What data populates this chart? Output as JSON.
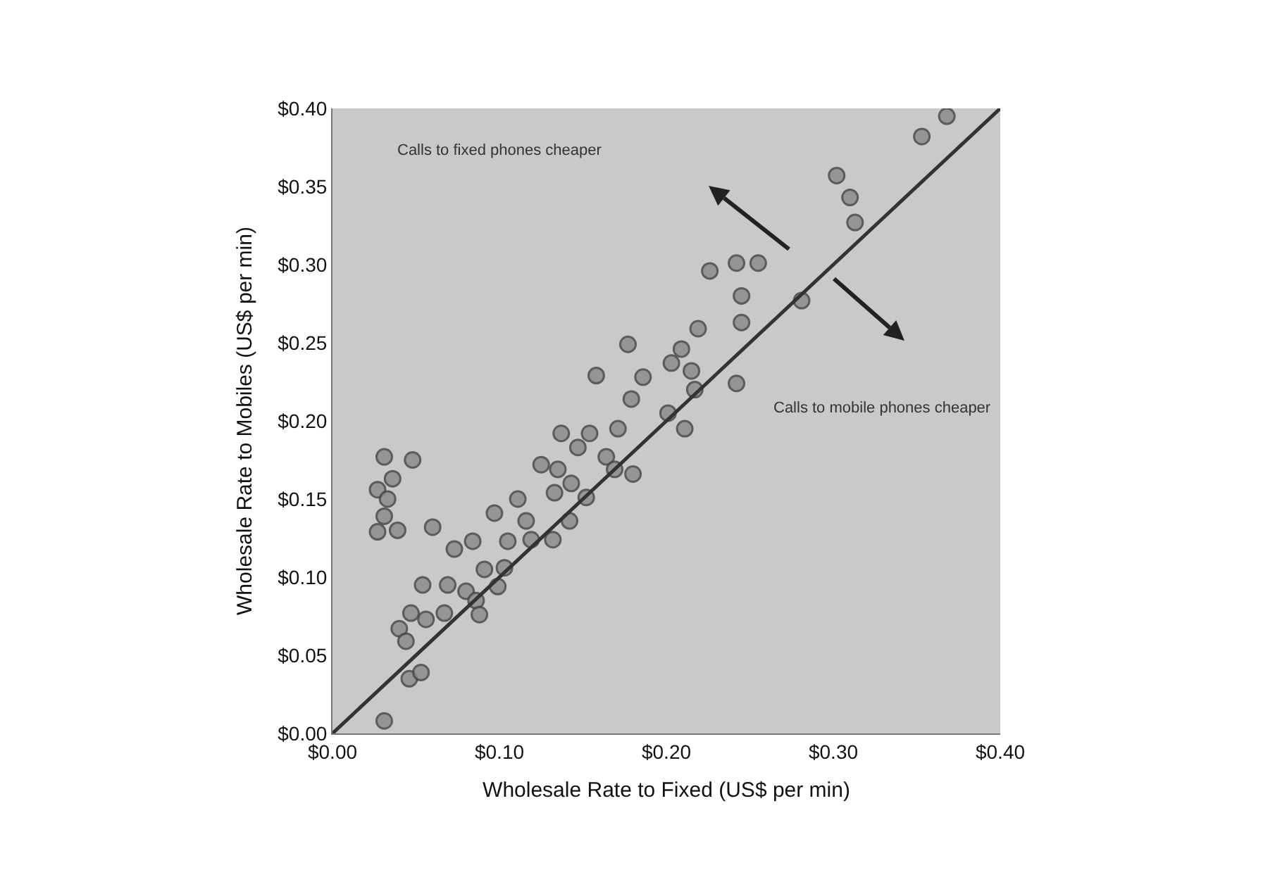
{
  "chart_data": {
    "type": "scatter",
    "xlabel": "Wholesale Rate to Fixed (US$ per min)",
    "ylabel": "Wholesale Rate to Mobiles (US$ per min)",
    "annotations": [
      "Calls to fixed phones cheaper",
      "Calls to mobile phones cheaper"
    ],
    "xlim": [
      0,
      0.4
    ],
    "ylim": [
      0,
      0.4
    ],
    "xticks": [
      {
        "value": 0,
        "label": "$0.00"
      },
      {
        "value": 0.1,
        "label": "$0.10"
      },
      {
        "value": 0.2,
        "label": "$0.20"
      },
      {
        "value": 0.3,
        "label": "$0.30"
      },
      {
        "value": 0.4,
        "label": "$0.40"
      }
    ],
    "yticks": [
      {
        "value": 0,
        "label": "$0.00"
      },
      {
        "value": 0.05,
        "label": "$0.05"
      },
      {
        "value": 0.1,
        "label": "$0.10"
      },
      {
        "value": 0.15,
        "label": "$0.15"
      },
      {
        "value": 0.2,
        "label": "$0.20"
      },
      {
        "value": 0.25,
        "label": "$0.25"
      },
      {
        "value": 0.3,
        "label": "$0.30"
      },
      {
        "value": 0.35,
        "label": "$0.35"
      },
      {
        "value": 0.4,
        "label": "$0.40"
      }
    ],
    "grid": false,
    "marker": "circle",
    "series": [
      {
        "color": "#8c8c8c",
        "x": [
          0.031,
          0.048,
          0.036,
          0.027,
          0.033,
          0.031,
          0.027,
          0.039,
          0.06,
          0.073,
          0.084,
          0.097,
          0.111,
          0.116,
          0.105,
          0.119,
          0.132,
          0.142,
          0.125,
          0.137,
          0.147,
          0.154,
          0.171,
          0.164,
          0.169,
          0.18,
          0.135,
          0.143,
          0.133,
          0.152,
          0.091,
          0.103,
          0.054,
          0.069,
          0.08,
          0.086,
          0.099,
          0.047,
          0.067,
          0.056,
          0.04,
          0.044,
          0.088,
          0.046,
          0.053,
          0.031,
          0.302,
          0.31,
          0.313,
          0.226,
          0.242,
          0.255,
          0.245,
          0.281,
          0.245,
          0.219,
          0.209,
          0.203,
          0.215,
          0.217,
          0.242,
          0.201,
          0.211,
          0.177,
          0.158,
          0.186,
          0.179,
          0.353,
          0.368
        ],
        "values": [
          0.177,
          0.175,
          0.163,
          0.156,
          0.15,
          0.139,
          0.129,
          0.13,
          0.132,
          0.118,
          0.123,
          0.141,
          0.15,
          0.136,
          0.123,
          0.124,
          0.124,
          0.136,
          0.172,
          0.192,
          0.183,
          0.192,
          0.195,
          0.177,
          0.169,
          0.166,
          0.169,
          0.16,
          0.154,
          0.151,
          0.105,
          0.106,
          0.095,
          0.095,
          0.091,
          0.085,
          0.094,
          0.077,
          0.077,
          0.073,
          0.067,
          0.059,
          0.076,
          0.035,
          0.039,
          0.008,
          0.357,
          0.343,
          0.327,
          0.296,
          0.301,
          0.301,
          0.28,
          0.277,
          0.263,
          0.259,
          0.246,
          0.237,
          0.232,
          0.22,
          0.224,
          0.205,
          0.195,
          0.249,
          0.229,
          0.228,
          0.214,
          0.382,
          0.395
        ]
      },
      {
        "type": "line",
        "color": "#333333",
        "x": [
          0,
          0.4
        ],
        "values": [
          0,
          0.4
        ],
        "marker": "none"
      }
    ]
  }
}
